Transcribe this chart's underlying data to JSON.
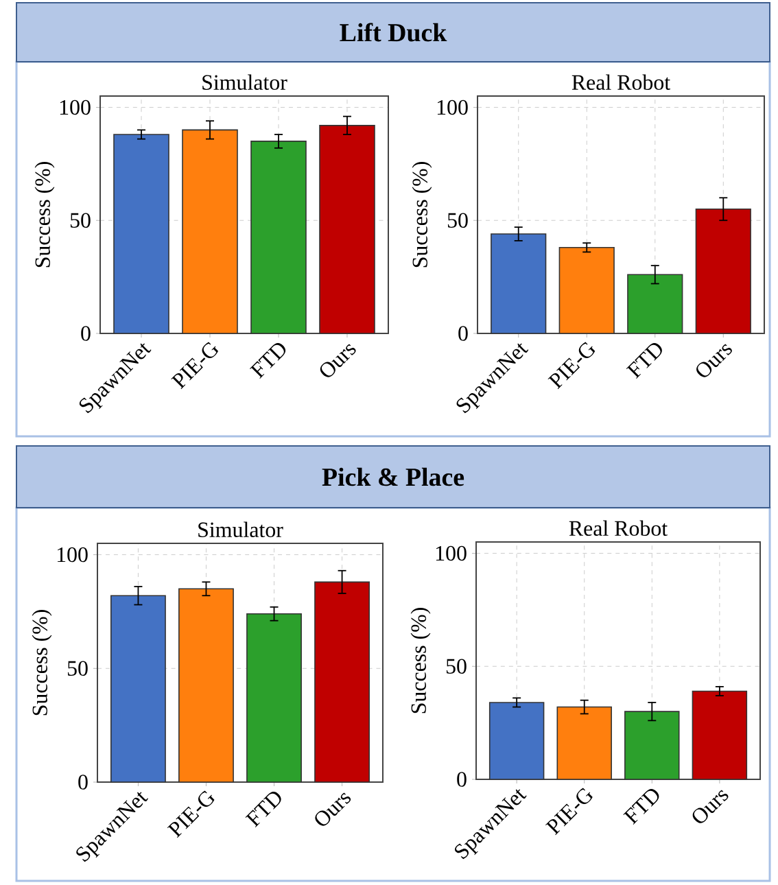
{
  "chart_data": [
    {
      "type": "other",
      "title": "Lift Duck"
    },
    {
      "type": "bar",
      "title": "Simulator",
      "ylabel": "Success (%)",
      "categories": [
        "SpawnNet",
        "PIE-G",
        "FTD",
        "Ours"
      ],
      "values": [
        88,
        90,
        85,
        92
      ],
      "errors": [
        2,
        4,
        3,
        4
      ],
      "colors": [
        "#4472c4",
        "#ff7f0e",
        "#2ca02c",
        "#c00000"
      ],
      "ylim": [
        0,
        105
      ],
      "yticks": [
        0,
        50,
        100
      ],
      "grid": true
    },
    {
      "type": "bar",
      "title": "Real Robot",
      "ylabel": "Success (%)",
      "categories": [
        "SpawnNet",
        "PIE-G",
        "FTD",
        "Ours"
      ],
      "values": [
        44,
        38,
        26,
        55
      ],
      "errors": [
        3,
        2,
        4,
        5
      ],
      "colors": [
        "#4472c4",
        "#ff7f0e",
        "#2ca02c",
        "#c00000"
      ],
      "ylim": [
        0,
        105
      ],
      "yticks": [
        0,
        50,
        100
      ],
      "grid": true
    },
    {
      "type": "other",
      "title": "Pick & Place"
    },
    {
      "type": "bar",
      "title": "Simulator",
      "ylabel": "Success (%)",
      "categories": [
        "SpawnNet",
        "PIE-G",
        "FTD",
        "Ours"
      ],
      "values": [
        82,
        85,
        74,
        88
      ],
      "errors": [
        4,
        3,
        3,
        5
      ],
      "colors": [
        "#4472c4",
        "#ff7f0e",
        "#2ca02c",
        "#c00000"
      ],
      "ylim": [
        0,
        105
      ],
      "yticks": [
        0,
        50,
        100
      ],
      "grid": true
    },
    {
      "type": "bar",
      "title": "Real Robot",
      "ylabel": "Success (%)",
      "categories": [
        "SpawnNet",
        "PIE-G",
        "FTD",
        "Ours"
      ],
      "values": [
        34,
        32,
        30,
        39
      ],
      "errors": [
        2,
        3,
        4,
        2
      ],
      "colors": [
        "#4472c4",
        "#ff7f0e",
        "#2ca02c",
        "#c00000"
      ],
      "ylim": [
        0,
        105
      ],
      "yticks": [
        0,
        50,
        100
      ],
      "grid": true
    }
  ]
}
